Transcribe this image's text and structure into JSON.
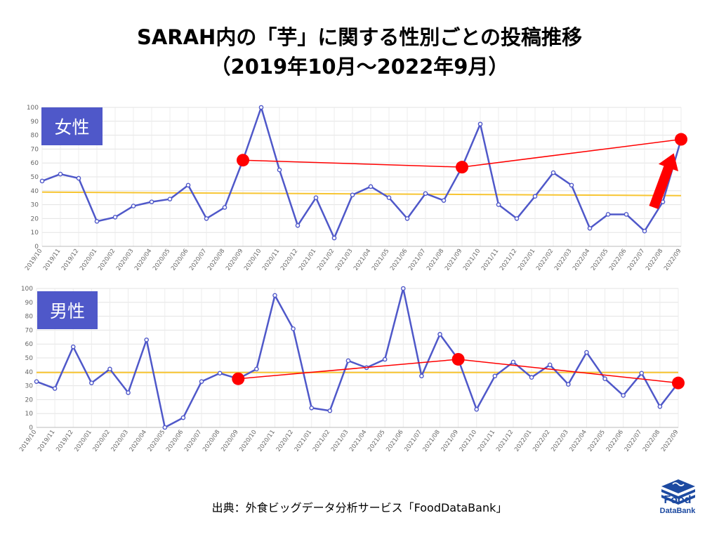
{
  "title_line1": "SARAH内の「芋」に関する性別ごとの投稿推移",
  "title_line2": "（2019年10月〜2022年9月）",
  "source_text": "出典：外食ビッグデータ分析サービス「FoodDataBank」",
  "logo": {
    "line1": "Food",
    "line2": "DataBank",
    "color": "#1d4aa1"
  },
  "colors": {
    "series": "#4f58c9",
    "trend": "#f7c532",
    "highlight": "#ff0000",
    "label_bg": "#4f58c9"
  },
  "chart_data": [
    {
      "type": "line",
      "label": "女性",
      "categories": [
        "2019/10",
        "2019/11",
        "2019/12",
        "2020/01",
        "2020/02",
        "2020/03",
        "2020/04",
        "2020/05",
        "2020/06",
        "2020/07",
        "2020/08",
        "2020/09",
        "2020/10",
        "2020/11",
        "2020/12",
        "2021/01",
        "2021/02",
        "2021/03",
        "2021/04",
        "2021/05",
        "2021/06",
        "2021/07",
        "2021/08",
        "2021/09",
        "2021/10",
        "2021/11",
        "2021/12",
        "2022/01",
        "2022/02",
        "2022/03",
        "2022/04",
        "2022/05",
        "2022/06",
        "2022/07",
        "2022/08",
        "2022/09"
      ],
      "values": [
        47,
        52,
        49,
        18,
        21,
        29,
        32,
        34,
        44,
        20,
        28,
        62,
        100,
        55,
        15,
        35,
        6,
        37,
        43,
        35,
        20,
        38,
        33,
        57,
        88,
        30,
        20,
        36,
        53,
        44,
        13,
        23,
        23,
        11,
        32,
        77
      ],
      "ylim": [
        0,
        100
      ],
      "yticks": [
        0,
        10,
        20,
        30,
        40,
        50,
        60,
        70,
        80,
        90,
        100
      ],
      "trend": [
        39,
        36.5
      ],
      "highlights": [
        11,
        23,
        35
      ],
      "arrow": {
        "from": [
          33.5,
          28
        ],
        "to": [
          34.6,
          67
        ]
      },
      "grid": true
    },
    {
      "type": "line",
      "label": "男性",
      "categories": [
        "2019/10",
        "2019/11",
        "2019/12",
        "2020/01",
        "2020/02",
        "2020/03",
        "2020/04",
        "2020/05",
        "2020/06",
        "2020/07",
        "2020/08",
        "2020/09",
        "2020/10",
        "2020/11",
        "2020/12",
        "2021/01",
        "2021/02",
        "2021/03",
        "2021/04",
        "2021/05",
        "2021/06",
        "2021/07",
        "2021/08",
        "2021/09",
        "2021/10",
        "2021/11",
        "2021/12",
        "2022/01",
        "2022/02",
        "2022/03",
        "2022/04",
        "2022/05",
        "2022/06",
        "2022/07",
        "2022/08",
        "2022/09"
      ],
      "values": [
        33,
        28,
        58,
        32,
        42,
        25,
        63,
        0,
        7,
        33,
        39,
        35,
        42,
        95,
        71,
        14,
        12,
        48,
        43,
        49,
        100,
        37,
        67,
        49,
        13,
        37,
        47,
        36,
        45,
        31,
        54,
        35,
        23,
        39,
        15,
        32
      ],
      "ylim": [
        0,
        100
      ],
      "yticks": [
        0,
        10,
        20,
        30,
        40,
        50,
        60,
        70,
        80,
        90,
        100
      ],
      "trend": [
        39.5,
        39.5
      ],
      "highlights": [
        11,
        23,
        35
      ],
      "grid": true
    }
  ]
}
